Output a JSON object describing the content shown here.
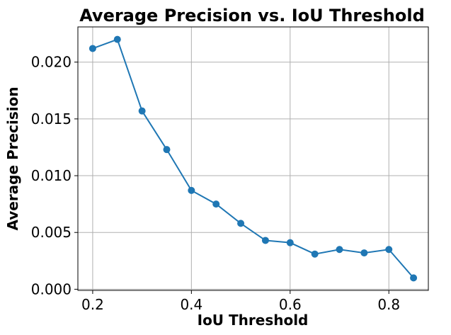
{
  "chart_data": {
    "type": "line",
    "title": "Average Precision vs. IoU Threshold",
    "xlabel": "IoU Threshold",
    "ylabel": "Average Precision",
    "x": [
      0.2,
      0.25,
      0.3,
      0.35,
      0.4,
      0.45,
      0.5,
      0.55,
      0.6,
      0.65,
      0.7,
      0.75,
      0.8,
      0.85
    ],
    "series": [
      {
        "color": "#1f77b4",
        "marker": "circle",
        "values": [
          0.0212,
          0.022,
          0.0157,
          0.0123,
          0.0087,
          0.0075,
          0.0058,
          0.0043,
          0.0041,
          0.0031,
          0.0035,
          0.0032,
          0.0035,
          0.001
        ]
      }
    ],
    "xlim": [
      0.17,
      0.88
    ],
    "ylim": [
      -0.0001,
      0.0231
    ],
    "xticks": [
      0.2,
      0.4,
      0.6,
      0.8
    ],
    "xtick_labels": [
      "0.2",
      "0.4",
      "0.6",
      "0.8"
    ],
    "yticks": [
      0.0,
      0.005,
      0.01,
      0.015,
      0.02
    ],
    "ytick_labels": [
      "0.000",
      "0.005",
      "0.010",
      "0.015",
      "0.020"
    ],
    "grid": true
  }
}
